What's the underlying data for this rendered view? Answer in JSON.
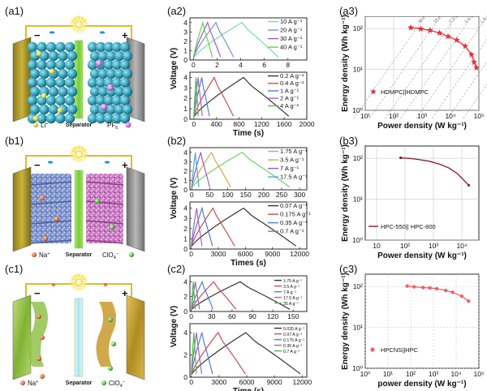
{
  "rows": [
    {
      "schematic": {
        "label": "(a1)",
        "minus": "−",
        "plus": "+",
        "separator": "Separator",
        "anion_label": "PF",
        "anion_sub": "6",
        "anion_sup": "−",
        "cation_label": "Li",
        "cation_sup": "+"
      },
      "gcd": {
        "label": "(a2)",
        "ylabel": "Voltage (V)",
        "xlabel": "Time (s)",
        "top": {
          "xticks": [
            "0",
            "2",
            "4",
            "6",
            "8"
          ],
          "yticks": [
            "0",
            "1",
            "2",
            "3",
            "4"
          ],
          "xlim": [
            -0.3,
            9.6
          ],
          "ylim": [
            0,
            4.5
          ],
          "series": [
            {
              "name": "10 A g⁻¹",
              "color": "#78d8ae",
              "t_charge": 4.1,
              "t_end": 7.2,
              "vmax": 4.0
            },
            {
              "name": "20 A g⁻¹",
              "color": "#7e8fd6",
              "t_charge": 1.9,
              "t_end": 3.4,
              "vmax": 4.0
            },
            {
              "name": "30 A g⁻¹",
              "color": "#9c5fc8",
              "t_charge": 1.2,
              "t_end": 2.3,
              "vmax": 4.0
            },
            {
              "name": "40 A g⁻¹",
              "color": "#67d15a",
              "t_charge": 0.8,
              "t_end": 1.6,
              "vmax": 4.0
            }
          ]
        },
        "bottom": {
          "xticks": [
            "0",
            "400",
            "800",
            "1200",
            "1600",
            "2000"
          ],
          "yticks": [
            "0",
            "1",
            "2",
            "3",
            "4"
          ],
          "xlim": [
            -70,
            2000
          ],
          "ylim": [
            0,
            4.5
          ],
          "series": [
            {
              "name": "0.2 A g⁻¹",
              "color": "#333333",
              "t_charge": 880,
              "t_end": 1680,
              "vmax": 4.0
            },
            {
              "name": "0.4 A g⁻¹",
              "color": "#c85050",
              "t_charge": 360,
              "t_end": 700,
              "vmax": 4.0
            },
            {
              "name": "1 A g⁻¹",
              "color": "#4f7fd0",
              "t_charge": 140,
              "t_end": 275,
              "vmax": 4.0
            },
            {
              "name": "2 A g⁻¹",
              "color": "#a561c8",
              "t_charge": 75,
              "t_end": 150,
              "vmax": 4.0
            },
            {
              "name": "4 A g⁻¹",
              "color": "#59b94b",
              "t_charge": 38,
              "t_end": 78,
              "vmax": 4.0
            }
          ]
        }
      },
      "ragone": {
        "label": "(a3)",
        "ylabel": "Energy density (Wh kg⁻¹)",
        "xlabel": "Power density (W kg⁻¹)",
        "xticks": [
          "10¹",
          "10²",
          "10³",
          "10⁴",
          "10⁵"
        ],
        "yticks": [
          "10⁰",
          "10¹",
          "10²"
        ],
        "legend": "HDMPC||HDMPC",
        "color": "#e8333c",
        "marker": "star",
        "points": [
          [
            400,
            105
          ],
          [
            900,
            98
          ],
          [
            1900,
            90
          ],
          [
            4100,
            78
          ],
          [
            8200,
            64
          ],
          [
            16500,
            52
          ],
          [
            33000,
            37
          ],
          [
            55000,
            23
          ],
          [
            68000,
            15
          ],
          [
            82000,
            11
          ]
        ],
        "slope_labels": [
          "36 s",
          "18 s",
          "7.2 s",
          "3.6 s",
          "1.8 s",
          "0.72 s",
          "0.36 s",
          "0.18 s"
        ]
      }
    },
    {
      "schematic": {
        "label": "(b1)",
        "minus": "−",
        "plus": "+",
        "separator": "Separator",
        "cation_label": "Na",
        "cation_sup": "+",
        "anion_label": "ClO",
        "anion_sub": "4",
        "anion_sup": "−"
      },
      "gcd": {
        "label": "(b2)",
        "ylabel": "Voltage (V)",
        "xlabel": "Times (s)",
        "top": {
          "xticks": [
            "0",
            "50",
            "100",
            "150",
            "200",
            "250",
            "300"
          ],
          "yticks": [
            "0",
            "1",
            "2",
            "3",
            "4"
          ],
          "xlim": [
            -5,
            320
          ],
          "ylim": [
            0,
            4.5
          ],
          "series": [
            {
              "name": "1.75 A g⁻¹",
              "color": "#6fd36a",
              "t_charge": 140,
              "t_end": 272,
              "vmax": 4.0
            },
            {
              "name": "3.5 A g⁻¹",
              "color": "#d6a84a",
              "t_charge": 55,
              "t_end": 108,
              "vmax": 4.0
            },
            {
              "name": "7 A g⁻¹",
              "color": "#9b5ec4",
              "t_charge": 25,
              "t_end": 50,
              "vmax": 4.0
            },
            {
              "name": "17.5 A g⁻¹",
              "color": "#4fa8d8",
              "t_charge": 10,
              "t_end": 20,
              "vmax": 4.0
            }
          ]
        },
        "bottom": {
          "xticks": [
            "0",
            "3000",
            "6000",
            "9000",
            "12000"
          ],
          "yticks": [
            "0",
            "1",
            "2",
            "3",
            "4"
          ],
          "xlim": [
            -150,
            12800
          ],
          "ylim": [
            0,
            4.6
          ],
          "series": [
            {
              "name": "0.07 A g⁻¹",
              "color": "#333333",
              "t_charge": 5800,
              "t_end": 11600,
              "vmax": 4.0
            },
            {
              "name": "0.175 A g⁻¹",
              "color": "#c85050",
              "t_charge": 2400,
              "t_end": 4800,
              "vmax": 4.0
            },
            {
              "name": "0.35 A g⁻¹",
              "color": "#4f7fd0",
              "t_charge": 1200,
              "t_end": 2350,
              "vmax": 4.0
            },
            {
              "name": "0.7 A g⁻¹",
              "color": "#a561c8",
              "t_charge": 600,
              "t_end": 1180,
              "vmax": 4.0
            }
          ]
        }
      },
      "ragone": {
        "label": "(b3)",
        "ylabel": "Energy density (Wh kg⁻¹)",
        "xlabel": "Power density (W kg⁻¹)",
        "xticks": [
          "10",
          "10²",
          "10³",
          "10⁴"
        ],
        "yticks": [
          "10⁰",
          "10¹",
          "10²"
        ],
        "legend": "HPC-550|| HPC-800",
        "color": "#8b1a22",
        "marker": "dot",
        "points": [
          [
            70,
            103
          ],
          [
            175,
            98
          ],
          [
            350,
            92
          ],
          [
            700,
            85
          ],
          [
            1750,
            71
          ],
          [
            3500,
            58
          ],
          [
            7000,
            42
          ],
          [
            17500,
            22
          ]
        ]
      }
    },
    {
      "schematic": {
        "label": "(c1)",
        "minus": "−",
        "plus": "+",
        "separator": "Separator",
        "cation_label": "Na",
        "cation_sup": "+",
        "anion_label": "ClO",
        "anion_sub": "4",
        "anion_sup": "−"
      },
      "gcd": {
        "label": "(c2)",
        "ylabel": "Voltage (V)",
        "xlabel": "Time (s)",
        "top": {
          "xticks": [
            "0",
            "30",
            "60",
            "90",
            "120",
            "150"
          ],
          "yticks": [
            "0",
            "2",
            "4"
          ],
          "xlim": [
            -2,
            170
          ],
          "ylim": [
            0,
            4.8
          ],
          "series": [
            {
              "name": "1.75 A g⁻¹",
              "color": "#333333",
              "t_charge": 72,
              "t_end": 145,
              "vmax": 4.0
            },
            {
              "name": "3.5 A g⁻¹",
              "color": "#c85050",
              "t_charge": 33,
              "t_end": 66,
              "vmax": 4.0
            },
            {
              "name": "7 A g⁻¹",
              "color": "#4f7fd0",
              "t_charge": 16,
              "t_end": 32,
              "vmax": 4.0
            },
            {
              "name": "17.5 A g⁻¹",
              "color": "#a561c8",
              "t_charge": 6,
              "t_end": 12,
              "vmax": 4.0
            },
            {
              "name": "35 A g⁻¹",
              "color": "#59b94b",
              "t_charge": 3,
              "t_end": 6,
              "vmax": 4.0
            }
          ]
        },
        "bottom": {
          "xticks": [
            "0",
            "3000",
            "6000",
            "9000",
            "12000"
          ],
          "yticks": [
            "0",
            "2",
            "4"
          ],
          "xlim": [
            -150,
            12500
          ],
          "ylim": [
            0,
            4.8
          ],
          "series": [
            {
              "name": "0.035 A g⁻¹",
              "color": "#333333",
              "t_charge": 5900,
              "t_end": 11800,
              "vmax": 4.0
            },
            {
              "name": "0.07 A g⁻¹",
              "color": "#c85050",
              "t_charge": 2900,
              "t_end": 5850,
              "vmax": 4.0
            },
            {
              "name": "0.175 A g⁻¹",
              "color": "#4f7fd0",
              "t_charge": 1150,
              "t_end": 2300,
              "vmax": 4.0
            },
            {
              "name": "0.35 A g⁻¹",
              "color": "#a561c8",
              "t_charge": 560,
              "t_end": 1120,
              "vmax": 4.0
            },
            {
              "name": "0.7 A g⁻¹",
              "color": "#59b94b",
              "t_charge": 280,
              "t_end": 560,
              "vmax": 4.0
            }
          ]
        }
      },
      "ragone": {
        "label": "(c3)",
        "ylabel": "Energy density (Wh kg⁻¹)",
        "xlabel": "power density (W kg⁻¹)",
        "xticks": [
          "10⁰",
          "10¹",
          "10²",
          "10³",
          "10⁴",
          "10⁵"
        ],
        "yticks": [
          "10⁰",
          "10¹",
          "10²"
        ],
        "legend": "HPCNS||HPC",
        "color": "#f0606a",
        "marker": "dot",
        "points": [
          [
            70,
            102
          ],
          [
            140,
            98
          ],
          [
            350,
            94
          ],
          [
            700,
            92
          ],
          [
            1400,
            88
          ],
          [
            3500,
            80
          ],
          [
            7000,
            72
          ],
          [
            17500,
            58
          ],
          [
            35000,
            44
          ]
        ]
      }
    }
  ]
}
